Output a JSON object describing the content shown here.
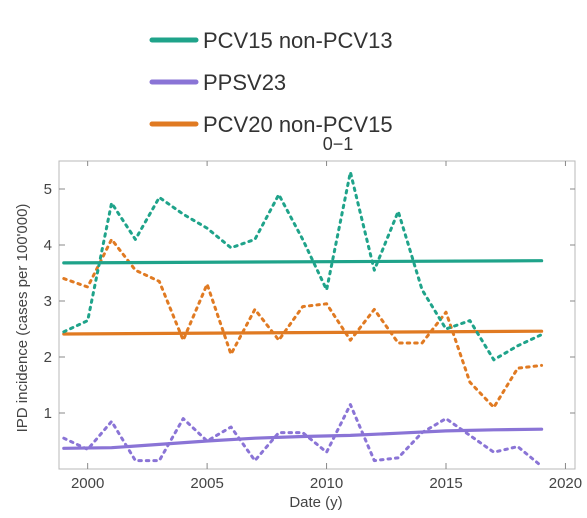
{
  "chart_data": {
    "type": "line",
    "title": "0−1",
    "xlabel": "Date (y)",
    "ylabel": "IPD incidence (cases per 100'000)",
    "xlim": [
      1998.8,
      2020.4
    ],
    "ylim": [
      0,
      5.5
    ],
    "x_ticks": [
      2000,
      2005,
      2010,
      2015,
      2020
    ],
    "y_ticks": [
      1,
      2,
      3,
      4,
      5
    ],
    "grid": false,
    "legend_position": "top",
    "series": [
      {
        "name": "PCV15 non-PCV13",
        "color": "#1fa38a",
        "observed": {
          "x": [
            1999,
            2000,
            2001,
            2002,
            2003,
            2004,
            2005,
            2006,
            2007,
            2008,
            2009,
            2010,
            2011,
            2012,
            2013,
            2014,
            2015,
            2016,
            2017,
            2018,
            2019
          ],
          "y": [
            2.45,
            2.65,
            4.75,
            4.1,
            4.85,
            4.55,
            4.3,
            3.95,
            4.1,
            4.9,
            4.1,
            3.2,
            5.3,
            3.55,
            4.6,
            3.2,
            2.5,
            2.65,
            1.95,
            2.2,
            2.4
          ]
        },
        "fit": {
          "x": [
            1999,
            2019
          ],
          "y": [
            3.68,
            3.72
          ]
        }
      },
      {
        "name": "PPSV23",
        "color": "#8a74d6",
        "observed": {
          "x": [
            1999,
            2000,
            2001,
            2002,
            2003,
            2004,
            2005,
            2006,
            2007,
            2008,
            2009,
            2010,
            2011,
            2012,
            2013,
            2014,
            2015,
            2016,
            2017,
            2018,
            2019
          ],
          "y": [
            0.55,
            0.35,
            0.85,
            0.15,
            0.15,
            0.9,
            0.5,
            0.75,
            0.15,
            0.65,
            0.65,
            0.3,
            1.15,
            0.15,
            0.2,
            0.65,
            0.9,
            0.6,
            0.3,
            0.4,
            0.05
          ]
        },
        "fit": {
          "x": [
            1999,
            2001,
            2003,
            2005,
            2007,
            2009,
            2011,
            2013,
            2015,
            2017,
            2019
          ],
          "y": [
            0.37,
            0.38,
            0.44,
            0.5,
            0.55,
            0.58,
            0.6,
            0.64,
            0.68,
            0.7,
            0.71
          ]
        }
      },
      {
        "name": "PCV20 non-PCV15",
        "color": "#e07a22",
        "observed": {
          "x": [
            1999,
            2000,
            2001,
            2002,
            2003,
            2004,
            2005,
            2006,
            2007,
            2008,
            2009,
            2010,
            2011,
            2012,
            2013,
            2014,
            2015,
            2016,
            2017,
            2018,
            2019
          ],
          "y": [
            3.4,
            3.25,
            4.1,
            3.55,
            3.35,
            2.3,
            3.3,
            2.05,
            2.85,
            2.3,
            2.9,
            2.95,
            2.3,
            2.85,
            2.25,
            2.25,
            2.8,
            1.55,
            1.1,
            1.8,
            1.85
          ]
        },
        "fit": {
          "x": [
            1999,
            2019
          ],
          "y": [
            2.41,
            2.46
          ]
        }
      }
    ]
  }
}
